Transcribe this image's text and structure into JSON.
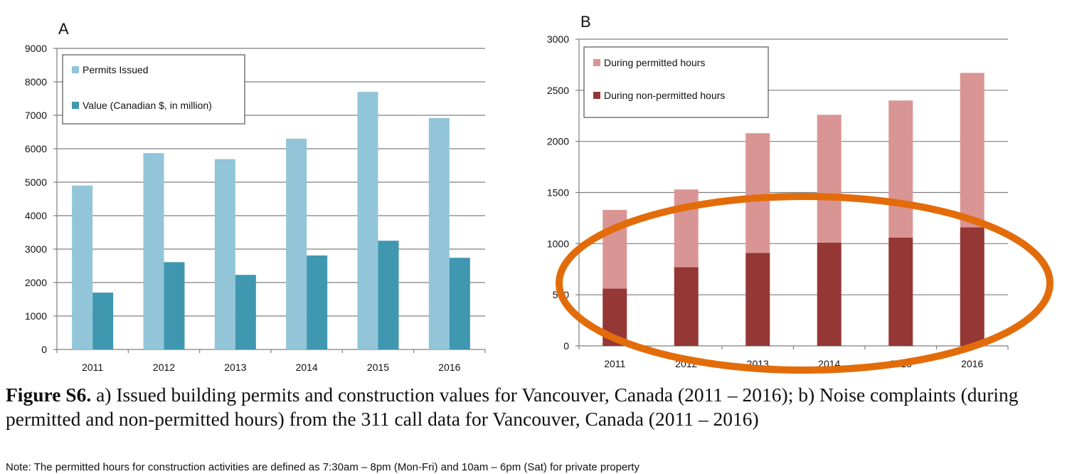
{
  "chart_data": [
    {
      "panel": "A",
      "type": "bar",
      "categories": [
        "2011",
        "2012",
        "2013",
        "2014",
        "2015",
        "2016"
      ],
      "series": [
        {
          "name": "Permits Issued",
          "color": "#92C5D8",
          "values": [
            4900,
            5870,
            5690,
            6300,
            7700,
            6920
          ]
        },
        {
          "name": "Value (Canadian $, in million)",
          "color": "#3F97B0",
          "values": [
            1700,
            2610,
            2230,
            2810,
            3250,
            2740
          ]
        }
      ],
      "ylim": [
        0,
        9000
      ],
      "yticks": [
        "0",
        "1000",
        "2000",
        "3000",
        "4000",
        "5000",
        "6000",
        "7000",
        "8000",
        "9000"
      ],
      "grid": true,
      "legend_position": "top-left"
    },
    {
      "panel": "B",
      "type": "bar",
      "stacked": true,
      "categories": [
        "2011",
        "2012",
        "2013",
        "2014",
        "2015",
        "2016"
      ],
      "series": [
        {
          "name": "During permitted hours",
          "color": "#D99594",
          "values": [
            770,
            760,
            1170,
            1250,
            1340,
            1510
          ]
        },
        {
          "name": "During non-permitted hours",
          "color": "#953735",
          "values": [
            560,
            770,
            910,
            1010,
            1060,
            1160
          ]
        }
      ],
      "ylim": [
        0,
        3000
      ],
      "yticks": [
        "0",
        "500",
        "1000",
        "1500",
        "2000",
        "2500",
        "3000"
      ],
      "grid": true,
      "legend_position": "top-left",
      "annotation": {
        "shape": "ellipse",
        "color": "#E36C0A",
        "highlights": "During non-permitted hours"
      }
    }
  ],
  "caption": {
    "label": "Figure S6.",
    "text": " a) Issued building permits and construction values for Vancouver, Canada (2011 – 2016); b) Noise complaints (during permitted and non-permitted hours) from the 311 call data for Vancouver, Canada (2011 – 2016)"
  },
  "note": "Note: The permitted hours for construction activities are defined as 7:30am – 8pm (Mon-Fri) and 10am – 6pm (Sat) for private property"
}
